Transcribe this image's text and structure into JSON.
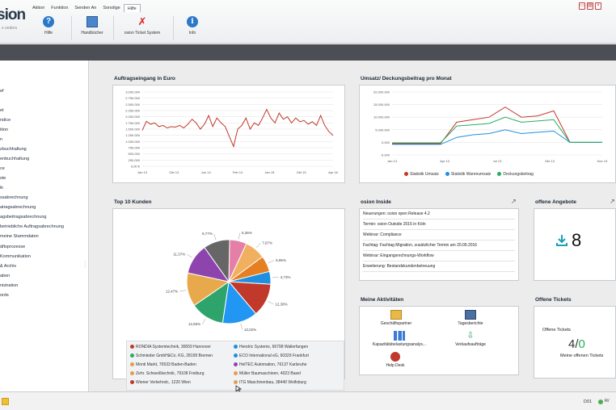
{
  "app": {
    "logo_text": "sion",
    "logo_tagline": "s unders"
  },
  "menu": {
    "tabs": [
      "Aktion",
      "Funktion",
      "Senden An",
      "Sonstige",
      "Hilfe"
    ],
    "active_tab": "Hilfe"
  },
  "ribbon": {
    "buttons": [
      {
        "label": "Hilfe",
        "icon": "help-icon"
      },
      {
        "label": "Handbücher",
        "icon": "book-icon"
      },
      {
        "label": "osion Ticket System",
        "icon": "ticket-icon"
      },
      {
        "label": "Info",
        "icon": "info-icon"
      }
    ]
  },
  "sidebar": {
    "items": [
      "ef",
      "et",
      "ndice",
      "ition",
      "n",
      "zbuchhaltung",
      "enbuchhaltung",
      "ce",
      "ste",
      "ik",
      "ssabrechnung",
      "atragsabrechnung",
      "agsbeitragsabrechnung",
      "betriebliche Auftragsabrechnung",
      "meine Stammdaten",
      "äftsprozesse",
      "Kommunikation",
      "& Archiv",
      "aben",
      "nistration",
      "ords"
    ]
  },
  "dashboard": {
    "auftrag": {
      "title": "Auftragseingang in Euro"
    },
    "umsatz": {
      "title": "Umsatz/ Deckungsbeitrag pro Monat"
    },
    "top10": {
      "title": "Top 10 Kunden",
      "legend": [
        {
          "name": "RONDIA Systemtechnik, 30659 Hannover",
          "color": "#c0392b"
        },
        {
          "name": "Hendric Systems, 66798 Wallerfangen",
          "color": "#1f8fe0"
        },
        {
          "name": "Schmieder GmbH&Co. KG, 28199 Bremen",
          "color": "#27ae60"
        },
        {
          "name": "ECO International eG, 60329 Frankfurt",
          "color": "#1f8fe0"
        },
        {
          "name": "Monti Markt, 76533 Baden-Baden",
          "color": "#e0a050"
        },
        {
          "name": "HelTEC Automation, 76137 Karlsruhe",
          "color": "#8e44ad"
        },
        {
          "name": "Zehr. Schweißtechnik, 79108 Freiburg",
          "color": "#e0a050"
        },
        {
          "name": "Müller Baumaschinen, 4023 Basel",
          "color": "#e0a050"
        },
        {
          "name": "Wiener Verkehrsb., 1220 Wien",
          "color": "#c0392b"
        },
        {
          "name": "ITG Maschinenbau, 38440 Wolfsburg",
          "color": "#e0a050"
        }
      ]
    },
    "inside": {
      "title": "osion Inside",
      "lines": [
        "Neuerungen: osion open Release 4.2",
        "Termin: osion Outside 2016 in Köln",
        "Webinar: Compliance",
        "Fachtag: Fachtag Migration, zusätzlicher Termin am 20.09.2016",
        "Webinar: Eingangsrechnungs-Workflow",
        "Erweiterung: Bestandskundenbetreuung"
      ]
    },
    "angebote": {
      "title": "offene Angebote",
      "count": "8"
    },
    "aktivitaeten": {
      "title": "Meine Aktivitäten",
      "items": [
        "Geschäftspartner",
        "Tagesberichte",
        "Kapazitätsbelastungsanalys...",
        "Verkaufsaufträge",
        "Help Desk"
      ]
    },
    "tickets": {
      "title": "Offene Tickets",
      "label": "Offene Tickets",
      "value_main": "4/",
      "value_accent": "0",
      "sublabel": "Meine offenen Tickets"
    }
  },
  "status_bar": {
    "user": "D01",
    "right": "R/"
  },
  "chart_data": [
    {
      "type": "line",
      "title": "Auftragseingang in Euro",
      "xlabel": "",
      "ylabel": "",
      "x_ticks": [
        "Jan 13",
        "Okt 13",
        "Jun 14",
        "Feb 14",
        "Jan 15",
        "Okt 15",
        "Apr 16"
      ],
      "y_ticks": [
        "0,00 €",
        "250.000",
        "500.000",
        "750.000",
        "1.000.000",
        "1.250.000",
        "1.500.000",
        "1.750.000",
        "2.000.000",
        "2.250.000",
        "2.500.000",
        "2.750.000",
        "3.000.000"
      ],
      "ylim": [
        0,
        3000000
      ],
      "series": [
        {
          "color": "#c0392b",
          "values": [
            1450000,
            1820000,
            1700000,
            1750000,
            1600000,
            1650000,
            1550000,
            1600000,
            1580000,
            1650000,
            1550000,
            1700000,
            1900000,
            1750000,
            1500000,
            1700000,
            2050000,
            1600000,
            1950000,
            1750000,
            1600000,
            1200000,
            800000,
            1500000,
            1650000,
            1950000,
            1500000,
            1750000,
            1650000,
            1950000,
            2300000,
            1950000,
            1750000,
            2150000,
            1900000,
            2000000,
            1750000,
            1950000,
            1800000,
            1850000,
            1700000,
            1800000,
            1650000,
            2050000,
            1650000,
            1400000,
            1250000
          ]
        }
      ]
    },
    {
      "type": "line",
      "title": "Umsatz/ Deckungsbeitrag pro Monat",
      "x_ticks": [
        "Jan 13",
        "Apr 13",
        "Jul 13",
        "Okt 13",
        "Dez 13"
      ],
      "y_ticks": [
        "-5.000",
        "0,000",
        "5.000.000",
        "10.000.000",
        "15.000.000",
        "20.000.000"
      ],
      "ylim": [
        -5000000,
        20000000
      ],
      "series": [
        {
          "name": "Statistik Umsatz",
          "color": "#c0392b",
          "values": [
            -500000,
            -500000,
            -500000,
            -500000,
            8000000,
            9000000,
            10000000,
            14000000,
            10000000,
            10500000,
            12500000,
            0,
            0,
            0
          ]
        },
        {
          "name": "Statistik Warenumsatz",
          "color": "#1f8fe0",
          "values": [
            -800000,
            -800000,
            -800000,
            -800000,
            2000000,
            3000000,
            3500000,
            5000000,
            3500000,
            4000000,
            4500000,
            0,
            0,
            0
          ]
        },
        {
          "name": "Deckungsbeitrag",
          "color": "#27ae60",
          "values": [
            -200000,
            -200000,
            -200000,
            -200000,
            6500000,
            7000000,
            7500000,
            10000000,
            8000000,
            8500000,
            9000000,
            0,
            0,
            0
          ]
        }
      ]
    },
    {
      "type": "pie",
      "title": "Top 10 Kunden",
      "slices": [
        {
          "label": "6,36%",
          "value": 6.36,
          "color": "#e67fa8"
        },
        {
          "label": "7,67%",
          "value": 7.67,
          "color": "#f0b060"
        },
        {
          "label": "5,95%",
          "value": 5.95,
          "color": "#e67e22"
        },
        {
          "label": "4,73%",
          "value": 4.73,
          "color": "#1f8fe0"
        },
        {
          "label": "12,38%",
          "value": 12.38,
          "color": "#c0392b"
        },
        {
          "label": "13,02%",
          "value": 13.02,
          "color": "#2196f3"
        },
        {
          "label": "12,55%",
          "value": 12.55,
          "color": "#2ea36b"
        },
        {
          "label": "12,47%",
          "value": 12.47,
          "color": "#e8a94d"
        },
        {
          "label": "11,37%",
          "value": 11.37,
          "color": "#8e44ad"
        },
        {
          "label": "9,77%",
          "value": 9.77,
          "color": "#666666"
        }
      ]
    }
  ]
}
